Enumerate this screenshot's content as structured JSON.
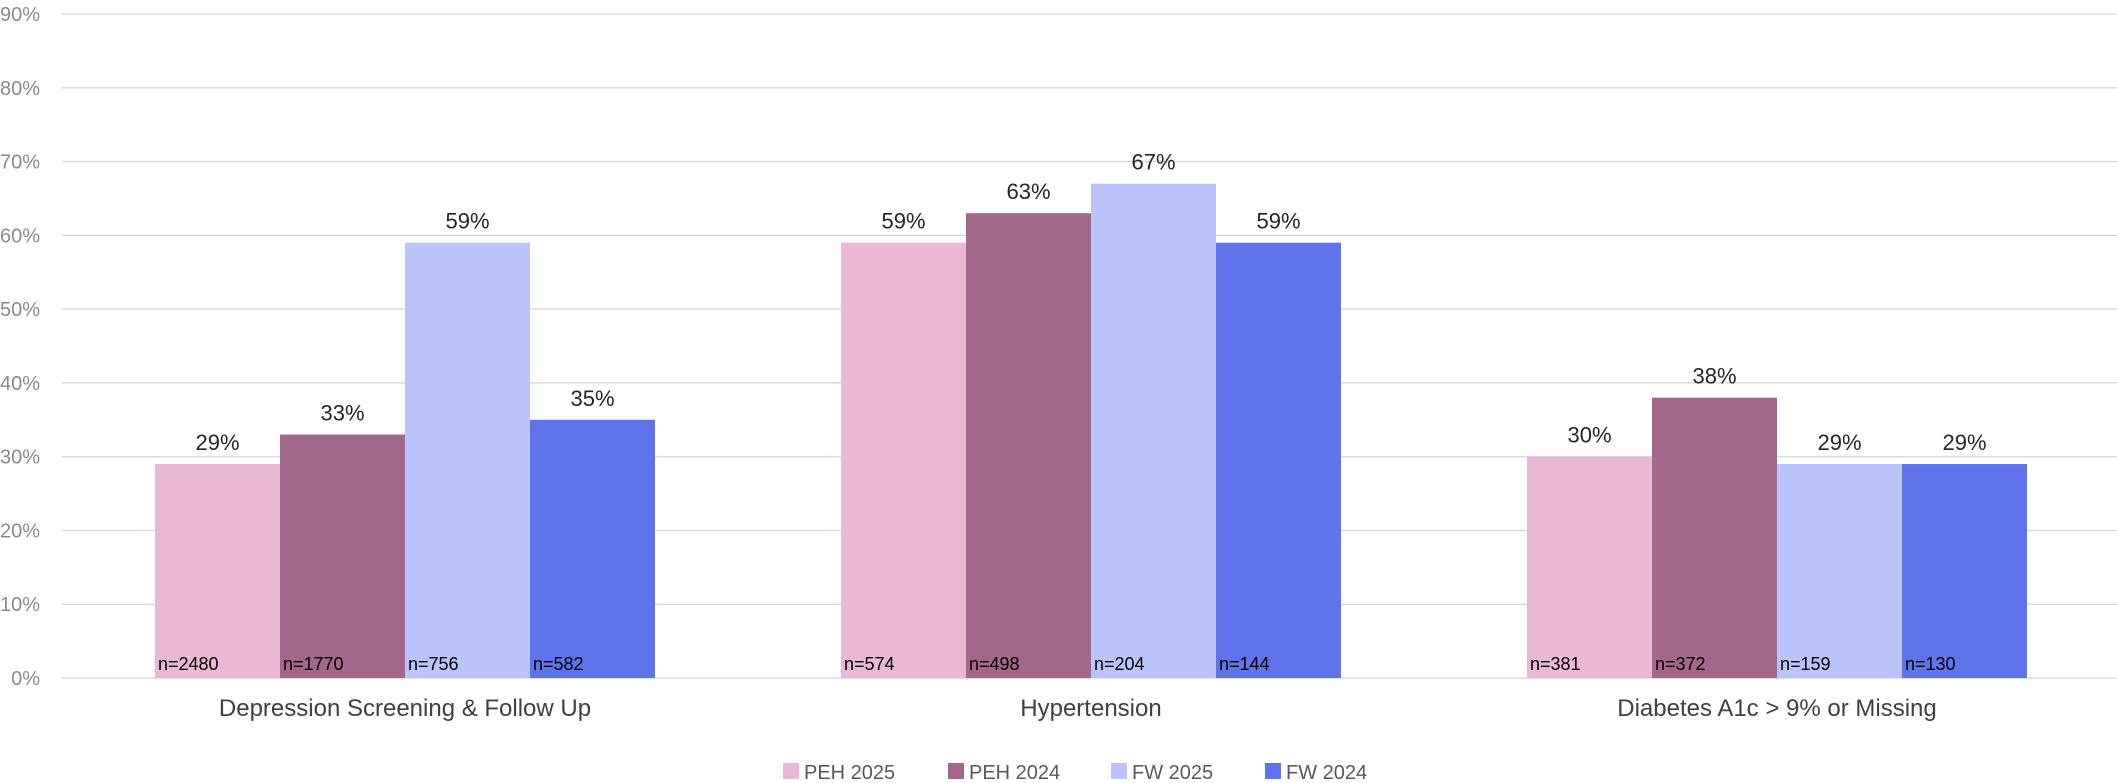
{
  "chart_data": {
    "type": "bar",
    "categories": [
      "Depression Screening & Follow Up",
      "Hypertension",
      "Diabetes A1c > 9% or Missing"
    ],
    "series": [
      {
        "name": "PEH 2025",
        "color": "#e8b8d4",
        "values": [
          29,
          59,
          30
        ],
        "value_labels": [
          "29%",
          "59%",
          "30%"
        ],
        "n_labels": [
          "n=2480",
          "n=574",
          "n=381"
        ]
      },
      {
        "name": "PEH 2024",
        "color": "#a3678b",
        "values": [
          33,
          63,
          38
        ],
        "value_labels": [
          "33%",
          "63%",
          "38%"
        ],
        "n_labels": [
          "n=1770",
          "n=498",
          "n=372"
        ]
      },
      {
        "name": "FW 2025",
        "color": "#bac3fa",
        "values": [
          59,
          67,
          29
        ],
        "value_labels": [
          "59%",
          "67%",
          "29%"
        ],
        "n_labels": [
          "n=756",
          "n=204",
          "n=159"
        ]
      },
      {
        "name": "FW 2024",
        "color": "#5f73ea",
        "values": [
          35,
          59,
          29
        ],
        "value_labels": [
          "35%",
          "59%",
          "29%"
        ],
        "n_labels": [
          "n=582",
          "n=144",
          "n=130"
        ]
      }
    ],
    "y_ticks": [
      "0%",
      "10%",
      "20%",
      "30%",
      "40%",
      "50%",
      "60%",
      "70%",
      "80%",
      "90%"
    ],
    "ylim": [
      0,
      90
    ],
    "unit": "%",
    "grid": true,
    "legend_position": "bottom",
    "title": "",
    "xlabel": "",
    "ylabel": ""
  }
}
